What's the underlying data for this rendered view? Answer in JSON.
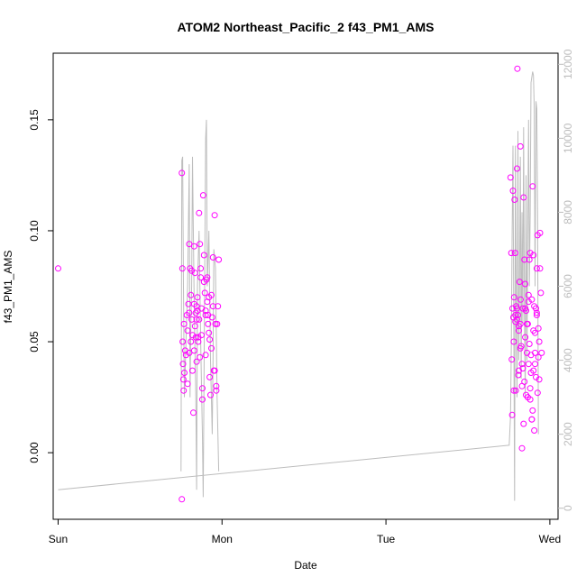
{
  "chart_data": {
    "type": "scatter",
    "title": "ATOM2 Northeast_Pacific_2 f43_PM1_AMS",
    "xlabel": "Date",
    "ylabel": "f43_PM1_AMS",
    "x_ticks": [
      "Sun",
      "Mon",
      "Tue",
      "Wed"
    ],
    "xlim_days": [
      -0.03,
      3.05
    ],
    "y_left": {
      "lim": [
        -0.03,
        0.18
      ],
      "ticks": [
        0.0,
        0.05,
        0.1,
        0.15
      ],
      "tick_labels": [
        "0.00",
        "0.05",
        "0.10",
        "0.15"
      ]
    },
    "y_right": {
      "lim": [
        -300,
        12300
      ],
      "ticks": [
        0,
        2000,
        4000,
        6000,
        8000,
        10000,
        12000
      ],
      "tick_labels": [
        "0",
        "2000",
        "4000",
        "6000",
        "8000",
        "10000",
        "12000"
      ]
    },
    "grid": false,
    "colors": {
      "points": "#ff00ff",
      "line": "#bdbdbd",
      "right_axis": "#bdbdbd",
      "axis": "#000000"
    },
    "series": [
      {
        "type": "scatter",
        "axis": "left",
        "points_block1": [
          [
            0.0,
            0.083
          ],
          [
            0.755,
            -0.021
          ],
          [
            0.755,
            0.126
          ],
          [
            0.758,
            0.083
          ],
          [
            0.76,
            0.05
          ],
          [
            0.762,
            0.04
          ],
          [
            0.764,
            0.033
          ],
          [
            0.766,
            0.028
          ],
          [
            0.768,
            0.058
          ],
          [
            0.77,
            0.036
          ],
          [
            0.775,
            0.046
          ],
          [
            0.78,
            0.044
          ],
          [
            0.785,
            0.062
          ],
          [
            0.79,
            0.055
          ],
          [
            0.795,
            0.067
          ],
          [
            0.8,
            0.094
          ],
          [
            0.805,
            0.083
          ],
          [
            0.81,
            0.071
          ],
          [
            0.815,
            0.06
          ],
          [
            0.82,
            0.053
          ],
          [
            0.825,
            0.018
          ],
          [
            0.83,
            0.093
          ],
          [
            0.835,
            0.081
          ],
          [
            0.84,
            0.063
          ],
          [
            0.845,
            0.066
          ],
          [
            0.85,
            0.07
          ],
          [
            0.855,
            0.05
          ],
          [
            0.86,
            0.108
          ],
          [
            0.865,
            0.094
          ],
          [
            0.87,
            0.079
          ],
          [
            0.875,
            0.065
          ],
          [
            0.88,
            0.029
          ],
          [
            0.885,
            0.116
          ],
          [
            0.89,
            0.089
          ],
          [
            0.895,
            0.072
          ],
          [
            0.9,
            0.062
          ],
          [
            0.905,
            0.078
          ],
          [
            0.91,
            0.068
          ],
          [
            0.915,
            0.058
          ],
          [
            0.92,
            0.07
          ],
          [
            0.925,
            0.051
          ],
          [
            0.93,
            0.026
          ],
          [
            0.935,
            0.047
          ],
          [
            0.94,
            0.061
          ],
          [
            0.945,
            0.088
          ],
          [
            0.95,
            0.037
          ],
          [
            0.955,
            0.107
          ],
          [
            0.96,
            0.058
          ],
          [
            0.965,
            0.03
          ],
          [
            0.97,
            0.058
          ],
          [
            0.975,
            0.066
          ],
          [
            0.98,
            0.087
          ],
          [
            0.82,
            0.037
          ],
          [
            0.83,
            0.046
          ],
          [
            0.835,
            0.057
          ],
          [
            0.84,
            0.052
          ],
          [
            0.845,
            0.041
          ],
          [
            0.85,
            0.064
          ],
          [
            0.86,
            0.06
          ],
          [
            0.87,
            0.083
          ],
          [
            0.875,
            0.053
          ],
          [
            0.88,
            0.024
          ],
          [
            0.89,
            0.077
          ],
          [
            0.9,
            0.064
          ],
          [
            0.91,
            0.079
          ],
          [
            0.915,
            0.062
          ],
          [
            0.925,
            0.034
          ],
          [
            0.935,
            0.071
          ],
          [
            0.945,
            0.066
          ],
          [
            0.955,
            0.037
          ],
          [
            0.965,
            0.028
          ],
          [
            0.8,
            0.045
          ],
          [
            0.79,
            0.031
          ],
          [
            0.8,
            0.063
          ],
          [
            0.81,
            0.05
          ],
          [
            0.815,
            0.082
          ],
          [
            0.83,
            0.067
          ],
          [
            0.845,
            0.06
          ],
          [
            0.855,
            0.052
          ],
          [
            0.865,
            0.043
          ],
          [
            0.9,
            0.044
          ],
          [
            0.92,
            0.054
          ]
        ],
        "points_block2": [
          [
            2.76,
            0.124
          ],
          [
            2.765,
            0.09
          ],
          [
            2.768,
            0.042
          ],
          [
            2.77,
            0.017
          ],
          [
            2.772,
            0.065
          ],
          [
            2.775,
            0.118
          ],
          [
            2.778,
            0.061
          ],
          [
            2.78,
            0.05
          ],
          [
            2.782,
            0.07
          ],
          [
            2.785,
            0.114
          ],
          [
            2.788,
            0.09
          ],
          [
            2.79,
            0.059
          ],
          [
            2.792,
            0.028
          ],
          [
            2.795,
            0.066
          ],
          [
            2.8,
            0.128
          ],
          [
            2.802,
            0.173
          ],
          [
            2.805,
            0.062
          ],
          [
            2.808,
            0.035
          ],
          [
            2.81,
            0.057
          ],
          [
            2.815,
            0.077
          ],
          [
            2.82,
            0.138
          ],
          [
            2.822,
            0.069
          ],
          [
            2.825,
            0.048
          ],
          [
            2.83,
            0.03
          ],
          [
            2.835,
            0.065
          ],
          [
            2.84,
            0.115
          ],
          [
            2.845,
            0.087
          ],
          [
            2.85,
            0.076
          ],
          [
            2.855,
            0.064
          ],
          [
            2.86,
            0.045
          ],
          [
            2.865,
            0.025
          ],
          [
            2.87,
            0.071
          ],
          [
            2.875,
            0.087
          ],
          [
            2.88,
            0.09
          ],
          [
            2.885,
            0.044
          ],
          [
            2.89,
            0.069
          ],
          [
            2.895,
            0.12
          ],
          [
            2.9,
            0.089
          ],
          [
            2.905,
            0.066
          ],
          [
            2.91,
            0.054
          ],
          [
            2.915,
            0.065
          ],
          [
            2.92,
            0.083
          ],
          [
            2.925,
            0.098
          ],
          [
            2.93,
            0.043
          ],
          [
            2.935,
            0.033
          ],
          [
            2.94,
            0.099
          ],
          [
            2.945,
            0.072
          ],
          [
            2.95,
            0.045
          ],
          [
            2.78,
            0.028
          ],
          [
            2.79,
            0.062
          ],
          [
            2.8,
            0.065
          ],
          [
            2.81,
            0.055
          ],
          [
            2.82,
            0.058
          ],
          [
            2.83,
            0.04
          ],
          [
            2.84,
            0.013
          ],
          [
            2.85,
            0.065
          ],
          [
            2.86,
            0.058
          ],
          [
            2.87,
            0.04
          ],
          [
            2.88,
            0.024
          ],
          [
            2.89,
            0.015
          ],
          [
            2.9,
            0.037
          ],
          [
            2.91,
            0.045
          ],
          [
            2.92,
            0.063
          ],
          [
            2.93,
            0.056
          ],
          [
            2.94,
            0.083
          ],
          [
            2.83,
            0.002
          ],
          [
            2.835,
            0.038
          ],
          [
            2.845,
            0.032
          ],
          [
            2.855,
            0.026
          ],
          [
            2.865,
            0.058
          ],
          [
            2.875,
            0.049
          ],
          [
            2.885,
            0.036
          ],
          [
            2.895,
            0.019
          ],
          [
            2.905,
            0.01
          ],
          [
            2.915,
            0.034
          ],
          [
            2.925,
            0.027
          ],
          [
            2.935,
            0.05
          ],
          [
            2.8,
            0.06
          ],
          [
            2.81,
            0.037
          ],
          [
            2.82,
            0.047
          ],
          [
            2.85,
            0.052
          ],
          [
            2.87,
            0.068
          ],
          [
            2.88,
            0.029
          ],
          [
            2.89,
            0.015
          ],
          [
            2.9,
            0.055
          ],
          [
            2.91,
            0.04
          ],
          [
            2.92,
            0.062
          ]
        ]
      },
      {
        "type": "line",
        "axis": "right",
        "points": [
          [
            0.0,
            500
          ],
          [
            2.75,
            1700
          ],
          [
            2.752,
            1700
          ],
          [
            2.76,
            2500
          ],
          [
            2.765,
            4500
          ],
          [
            2.77,
            7500
          ],
          [
            2.775,
            9800
          ],
          [
            2.78,
            5000
          ],
          [
            2.785,
            200
          ],
          [
            2.79,
            9800
          ],
          [
            2.795,
            5500
          ],
          [
            2.8,
            3000
          ],
          [
            2.805,
            10200
          ],
          [
            2.81,
            4000
          ],
          [
            2.815,
            6000
          ],
          [
            2.82,
            9500
          ],
          [
            2.825,
            3500
          ],
          [
            2.83,
            8000
          ],
          [
            2.835,
            5000
          ],
          [
            2.84,
            10300
          ],
          [
            2.845,
            5500
          ],
          [
            2.85,
            3000
          ],
          [
            2.855,
            9000
          ],
          [
            2.86,
            4000
          ],
          [
            2.865,
            7500
          ],
          [
            2.87,
            10500
          ],
          [
            2.875,
            6000
          ],
          [
            2.88,
            8000
          ],
          [
            2.885,
            11500
          ],
          [
            2.895,
            11800
          ],
          [
            2.9,
            11700
          ],
          [
            2.905,
            10800
          ],
          [
            2.91,
            6000
          ],
          [
            2.915,
            11000
          ],
          [
            2.92,
            10800
          ],
          [
            2.925,
            8000
          ],
          [
            2.93,
            2000
          ]
        ],
        "points_block1": [
          [
            0.75,
            1000
          ],
          [
            0.755,
            9400
          ],
          [
            0.76,
            9500
          ],
          [
            0.765,
            6000
          ],
          [
            0.77,
            3000
          ],
          [
            0.78,
            4500
          ],
          [
            0.79,
            6000
          ],
          [
            0.8,
            9300
          ],
          [
            0.805,
            3000
          ],
          [
            0.81,
            5000
          ],
          [
            0.815,
            6000
          ],
          [
            0.82,
            9500
          ],
          [
            0.83,
            5500
          ],
          [
            0.84,
            3000
          ],
          [
            0.845,
            500
          ],
          [
            0.85,
            6000
          ],
          [
            0.86,
            7500
          ],
          [
            0.87,
            4500
          ],
          [
            0.88,
            2000
          ],
          [
            0.885,
            300
          ],
          [
            0.89,
            3500
          ],
          [
            0.9,
            10000
          ],
          [
            0.905,
            10500
          ],
          [
            0.91,
            6000
          ],
          [
            0.92,
            7500
          ],
          [
            0.93,
            4000
          ],
          [
            0.94,
            2000
          ],
          [
            0.945,
            4000
          ],
          [
            0.95,
            7000
          ],
          [
            0.96,
            6500
          ],
          [
            0.97,
            3000
          ],
          [
            0.98,
            1000
          ]
        ]
      }
    ]
  }
}
